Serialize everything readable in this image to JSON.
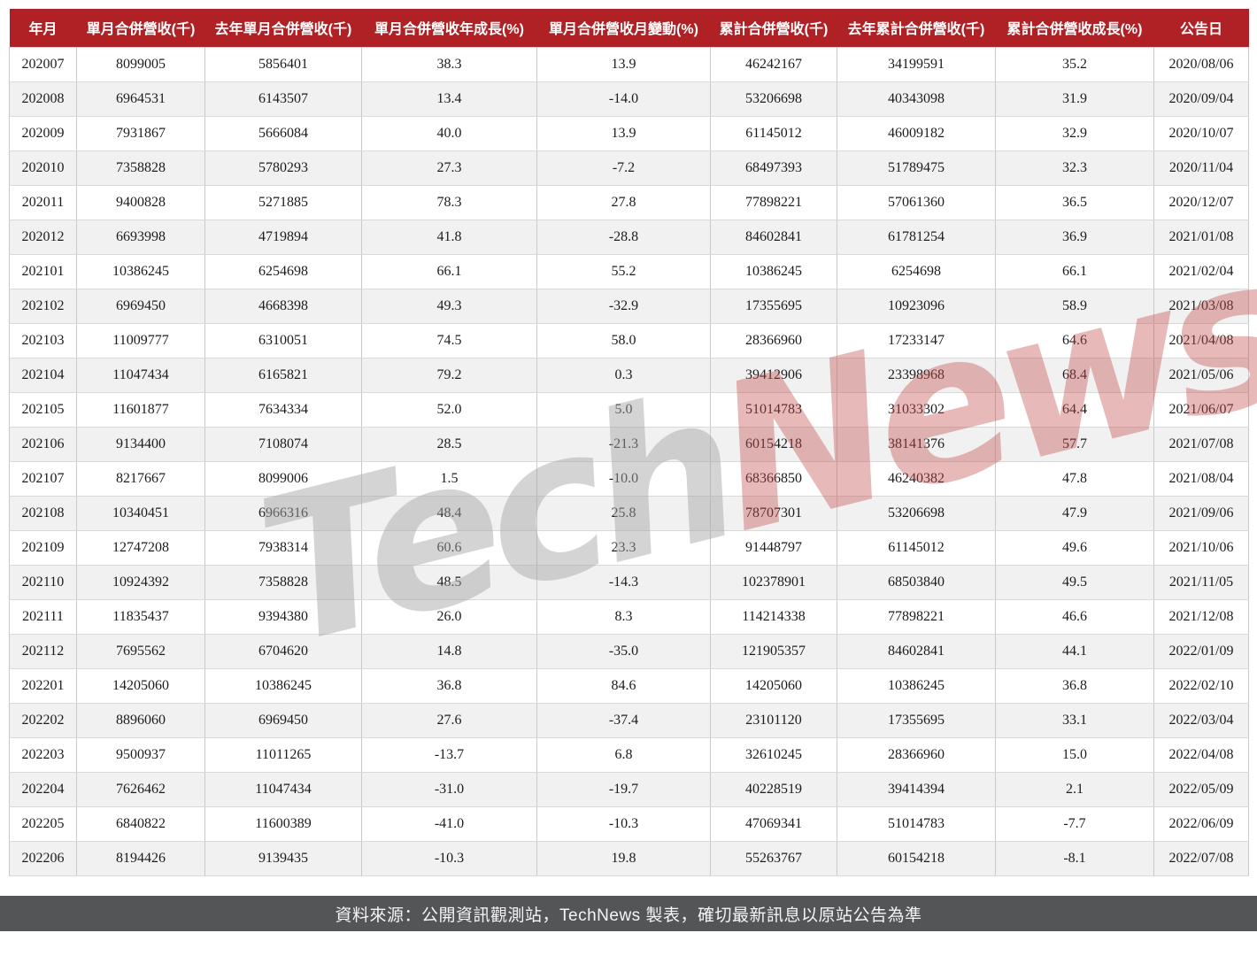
{
  "chart_data": {
    "type": "table",
    "title": "月合併營收表 (TechNews)",
    "columns": [
      "年月",
      "單月合併營收(千)",
      "去年單月合併營收(千)",
      "單月合併營收年成長(%)",
      "單月合併營收月變動(%)",
      "累計合併營收(千)",
      "去年累計合併營收(千)",
      "累計合併營收成長(%)",
      "公告日"
    ],
    "rows": [
      [
        "202007",
        "8099005",
        "5856401",
        "38.3",
        "13.9",
        "46242167",
        "34199591",
        "35.2",
        "2020/08/06"
      ],
      [
        "202008",
        "6964531",
        "6143507",
        "13.4",
        "-14.0",
        "53206698",
        "40343098",
        "31.9",
        "2020/09/04"
      ],
      [
        "202009",
        "7931867",
        "5666084",
        "40.0",
        "13.9",
        "61145012",
        "46009182",
        "32.9",
        "2020/10/07"
      ],
      [
        "202010",
        "7358828",
        "5780293",
        "27.3",
        "-7.2",
        "68497393",
        "51789475",
        "32.3",
        "2020/11/04"
      ],
      [
        "202011",
        "9400828",
        "5271885",
        "78.3",
        "27.8",
        "77898221",
        "57061360",
        "36.5",
        "2020/12/07"
      ],
      [
        "202012",
        "6693998",
        "4719894",
        "41.8",
        "-28.8",
        "84602841",
        "61781254",
        "36.9",
        "2021/01/08"
      ],
      [
        "202101",
        "10386245",
        "6254698",
        "66.1",
        "55.2",
        "10386245",
        "6254698",
        "66.1",
        "2021/02/04"
      ],
      [
        "202102",
        "6969450",
        "4668398",
        "49.3",
        "-32.9",
        "17355695",
        "10923096",
        "58.9",
        "2021/03/08"
      ],
      [
        "202103",
        "11009777",
        "6310051",
        "74.5",
        "58.0",
        "28366960",
        "17233147",
        "64.6",
        "2021/04/08"
      ],
      [
        "202104",
        "11047434",
        "6165821",
        "79.2",
        "0.3",
        "39412906",
        "23398968",
        "68.4",
        "2021/05/06"
      ],
      [
        "202105",
        "11601877",
        "7634334",
        "52.0",
        "5.0",
        "51014783",
        "31033302",
        "64.4",
        "2021/06/07"
      ],
      [
        "202106",
        "9134400",
        "7108074",
        "28.5",
        "-21.3",
        "60154218",
        "38141376",
        "57.7",
        "2021/07/08"
      ],
      [
        "202107",
        "8217667",
        "8099006",
        "1.5",
        "-10.0",
        "68366850",
        "46240382",
        "47.8",
        "2021/08/04"
      ],
      [
        "202108",
        "10340451",
        "6966316",
        "48.4",
        "25.8",
        "78707301",
        "53206698",
        "47.9",
        "2021/09/06"
      ],
      [
        "202109",
        "12747208",
        "7938314",
        "60.6",
        "23.3",
        "91448797",
        "61145012",
        "49.6",
        "2021/10/06"
      ],
      [
        "202110",
        "10924392",
        "7358828",
        "48.5",
        "-14.3",
        "102378901",
        "68503840",
        "49.5",
        "2021/11/05"
      ],
      [
        "202111",
        "11835437",
        "9394380",
        "26.0",
        "8.3",
        "114214338",
        "77898221",
        "46.6",
        "2021/12/08"
      ],
      [
        "202112",
        "7695562",
        "6704620",
        "14.8",
        "-35.0",
        "121905357",
        "84602841",
        "44.1",
        "2022/01/09"
      ],
      [
        "202201",
        "14205060",
        "10386245",
        "36.8",
        "84.6",
        "14205060",
        "10386245",
        "36.8",
        "2022/02/10"
      ],
      [
        "202202",
        "8896060",
        "6969450",
        "27.6",
        "-37.4",
        "23101120",
        "17355695",
        "33.1",
        "2022/03/04"
      ],
      [
        "202203",
        "9500937",
        "11011265",
        "-13.7",
        "6.8",
        "32610245",
        "28366960",
        "15.0",
        "2022/04/08"
      ],
      [
        "202204",
        "7626462",
        "11047434",
        "-31.0",
        "-19.7",
        "40228519",
        "39414394",
        "2.1",
        "2022/05/09"
      ],
      [
        "202205",
        "6840822",
        "11600389",
        "-41.0",
        "-10.3",
        "47069341",
        "51014783",
        "-7.7",
        "2022/06/09"
      ],
      [
        "202206",
        "8194426",
        "9139435",
        "-10.3",
        "19.8",
        "55263767",
        "60154218",
        "-8.1",
        "2022/07/08"
      ]
    ],
    "layout": {
      "grid": true,
      "striped_rows": true,
      "header_position": "top"
    }
  },
  "watermark": {
    "part1": "Tech",
    "part2": "News"
  },
  "footer": {
    "text": "資料來源：公開資訊觀測站，TechNews 製表，確切最新訊息以原站公告為準"
  },
  "colors": {
    "header_bg": "#b02126",
    "footer_bg": "#545557",
    "row_alt_bg": "#f1f1f1",
    "border": "#c9c9c9",
    "watermark_gray": "rgba(165,165,165,0.48)",
    "watermark_red": "rgba(198,80,80,0.40)"
  }
}
